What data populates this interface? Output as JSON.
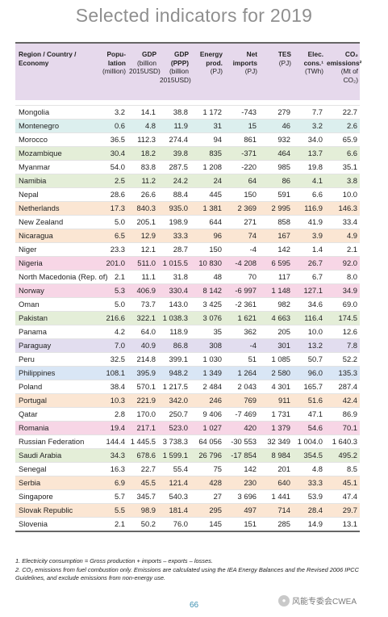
{
  "title": "Selected indicators for 2019",
  "row_colors": {
    "white": "#ffffff",
    "teal": "#dcefee",
    "green": "#e4eed8",
    "orange": "#fbe6d3",
    "pink": "#f7d6e6",
    "lavender": "#e2ddef",
    "blue": "#d9e6f5",
    "header": "#e6d9ec"
  },
  "table": {
    "headers": [
      {
        "main": "Region / Country / Economy",
        "sub": ""
      },
      {
        "main": "Popu-lation",
        "sub": "(million)"
      },
      {
        "main": "GDP",
        "sub": "(billion 2015USD)"
      },
      {
        "main": "GDP (PPP)",
        "sub": "(billion 2015USD)"
      },
      {
        "main": "Energy prod.",
        "sub": "(PJ)"
      },
      {
        "main": "Net imports",
        "sub": "(PJ)"
      },
      {
        "main": "TES",
        "sub": "(PJ)"
      },
      {
        "main": "Elec. cons.¹",
        "sub": "(TWh)"
      },
      {
        "main": "CO₂ emissions²",
        "sub": "(Mt of CO₂)"
      }
    ],
    "rows": [
      {
        "name": "Mongolia",
        "color": "white",
        "values": [
          "3.2",
          "14.1",
          "38.8",
          "1 172",
          "-743",
          "279",
          "7.7",
          "22.7"
        ]
      },
      {
        "name": "Montenegro",
        "color": "teal",
        "values": [
          "0.6",
          "4.8",
          "11.9",
          "31",
          "15",
          "46",
          "3.2",
          "2.6"
        ]
      },
      {
        "name": "Morocco",
        "color": "white",
        "values": [
          "36.5",
          "112.3",
          "274.4",
          "94",
          "861",
          "932",
          "34.0",
          "65.9"
        ]
      },
      {
        "name": "Mozambique",
        "color": "green",
        "values": [
          "30.4",
          "18.2",
          "39.8",
          "835",
          "-371",
          "464",
          "13.7",
          "6.6"
        ]
      },
      {
        "name": "Myanmar",
        "color": "white",
        "values": [
          "54.0",
          "83.8",
          "287.5",
          "1 208",
          "-220",
          "985",
          "19.8",
          "35.1"
        ]
      },
      {
        "name": "Namibia",
        "color": "green",
        "values": [
          "2.5",
          "11.2",
          "24.2",
          "24",
          "64",
          "86",
          "4.1",
          "3.8"
        ]
      },
      {
        "name": "Nepal",
        "color": "white",
        "values": [
          "28.6",
          "26.6",
          "88.4",
          "445",
          "150",
          "591",
          "6.6",
          "10.0"
        ]
      },
      {
        "name": "Netherlands",
        "color": "orange",
        "values": [
          "17.3",
          "840.3",
          "935.0",
          "1 381",
          "2 369",
          "2 995",
          "116.9",
          "146.3"
        ]
      },
      {
        "name": "New Zealand",
        "color": "white",
        "values": [
          "5.0",
          "205.1",
          "198.9",
          "644",
          "271",
          "858",
          "41.9",
          "33.4"
        ]
      },
      {
        "name": "Nicaragua",
        "color": "orange",
        "values": [
          "6.5",
          "12.9",
          "33.3",
          "96",
          "74",
          "167",
          "3.9",
          "4.9"
        ]
      },
      {
        "name": "Niger",
        "color": "white",
        "values": [
          "23.3",
          "12.1",
          "28.7",
          "150",
          "-4",
          "142",
          "1.4",
          "2.1"
        ]
      },
      {
        "name": "Nigeria",
        "color": "pink",
        "values": [
          "201.0",
          "511.0",
          "1 015.5",
          "10 830",
          "-4 208",
          "6 595",
          "26.7",
          "92.0"
        ]
      },
      {
        "name": "North Macedonia (Rep. of)",
        "color": "white",
        "values": [
          "2.1",
          "11.1",
          "31.8",
          "48",
          "70",
          "117",
          "6.7",
          "8.0"
        ]
      },
      {
        "name": "Norway",
        "color": "pink",
        "values": [
          "5.3",
          "406.9",
          "330.4",
          "8 142",
          "-6 997",
          "1 148",
          "127.1",
          "34.9"
        ]
      },
      {
        "name": "Oman",
        "color": "white",
        "values": [
          "5.0",
          "73.7",
          "143.0",
          "3 425",
          "-2 361",
          "982",
          "34.6",
          "69.0"
        ]
      },
      {
        "name": "Pakistan",
        "color": "green",
        "values": [
          "216.6",
          "322.1",
          "1 038.3",
          "3 076",
          "1 621",
          "4 663",
          "116.4",
          "174.5"
        ]
      },
      {
        "name": "Panama",
        "color": "white",
        "values": [
          "4.2",
          "64.0",
          "118.9",
          "35",
          "362",
          "205",
          "10.0",
          "12.6"
        ]
      },
      {
        "name": "Paraguay",
        "color": "lavender",
        "values": [
          "7.0",
          "40.9",
          "86.8",
          "308",
          "-4",
          "301",
          "13.2",
          "7.8"
        ]
      },
      {
        "name": "Peru",
        "color": "white",
        "values": [
          "32.5",
          "214.8",
          "399.1",
          "1 030",
          "51",
          "1 085",
          "50.7",
          "52.2"
        ]
      },
      {
        "name": "Philippines",
        "color": "blue",
        "values": [
          "108.1",
          "395.9",
          "948.2",
          "1 349",
          "1 264",
          "2 580",
          "96.0",
          "135.3"
        ]
      },
      {
        "name": "Poland",
        "color": "white",
        "values": [
          "38.4",
          "570.1",
          "1 217.5",
          "2 484",
          "2 043",
          "4 301",
          "165.7",
          "287.4"
        ]
      },
      {
        "name": "Portugal",
        "color": "orange",
        "values": [
          "10.3",
          "221.9",
          "342.0",
          "246",
          "769",
          "911",
          "51.6",
          "42.4"
        ]
      },
      {
        "name": "Qatar",
        "color": "white",
        "values": [
          "2.8",
          "170.0",
          "250.7",
          "9 406",
          "-7 469",
          "1 731",
          "47.1",
          "86.9"
        ]
      },
      {
        "name": "Romania",
        "color": "pink",
        "values": [
          "19.4",
          "217.1",
          "523.0",
          "1 027",
          "420",
          "1 379",
          "54.6",
          "70.1"
        ]
      },
      {
        "name": "Russian Federation",
        "color": "white",
        "values": [
          "144.4",
          "1 445.5",
          "3 738.3",
          "64 056",
          "-30 553",
          "32 349",
          "1 004.0",
          "1 640.3"
        ]
      },
      {
        "name": "Saudi Arabia",
        "color": "green",
        "values": [
          "34.3",
          "678.6",
          "1 599.1",
          "26 796",
          "-17 854",
          "8 984",
          "354.5",
          "495.2"
        ]
      },
      {
        "name": "Senegal",
        "color": "white",
        "values": [
          "16.3",
          "22.7",
          "55.4",
          "75",
          "142",
          "201",
          "4.8",
          "8.5"
        ]
      },
      {
        "name": "Serbia",
        "color": "orange",
        "values": [
          "6.9",
          "45.5",
          "121.4",
          "428",
          "230",
          "640",
          "33.3",
          "45.1"
        ]
      },
      {
        "name": "Singapore",
        "color": "white",
        "values": [
          "5.7",
          "345.7",
          "540.3",
          "27",
          "3 696",
          "1 441",
          "53.9",
          "47.4"
        ]
      },
      {
        "name": "Slovak Republic",
        "color": "orange",
        "values": [
          "5.5",
          "98.9",
          "181.4",
          "295",
          "497",
          "714",
          "28.4",
          "29.7"
        ]
      },
      {
        "name": "Slovenia",
        "color": "white",
        "values": [
          "2.1",
          "50.2",
          "76.0",
          "145",
          "151",
          "285",
          "14.9",
          "13.1"
        ]
      }
    ]
  },
  "footnotes": [
    "1. Electricity consumption = Gross production + imports – exports – losses.",
    "2. CO₂ emissions from fuel combustion only. Emissions are calculated using the IEA Energy Balances and the Revised 2006 IPCC Guidelines, and exclude emissions from non-energy use."
  ],
  "page_number": "66",
  "watermark": {
    "text": "风能专委会CWEA",
    "icon": "wechat-icon"
  }
}
